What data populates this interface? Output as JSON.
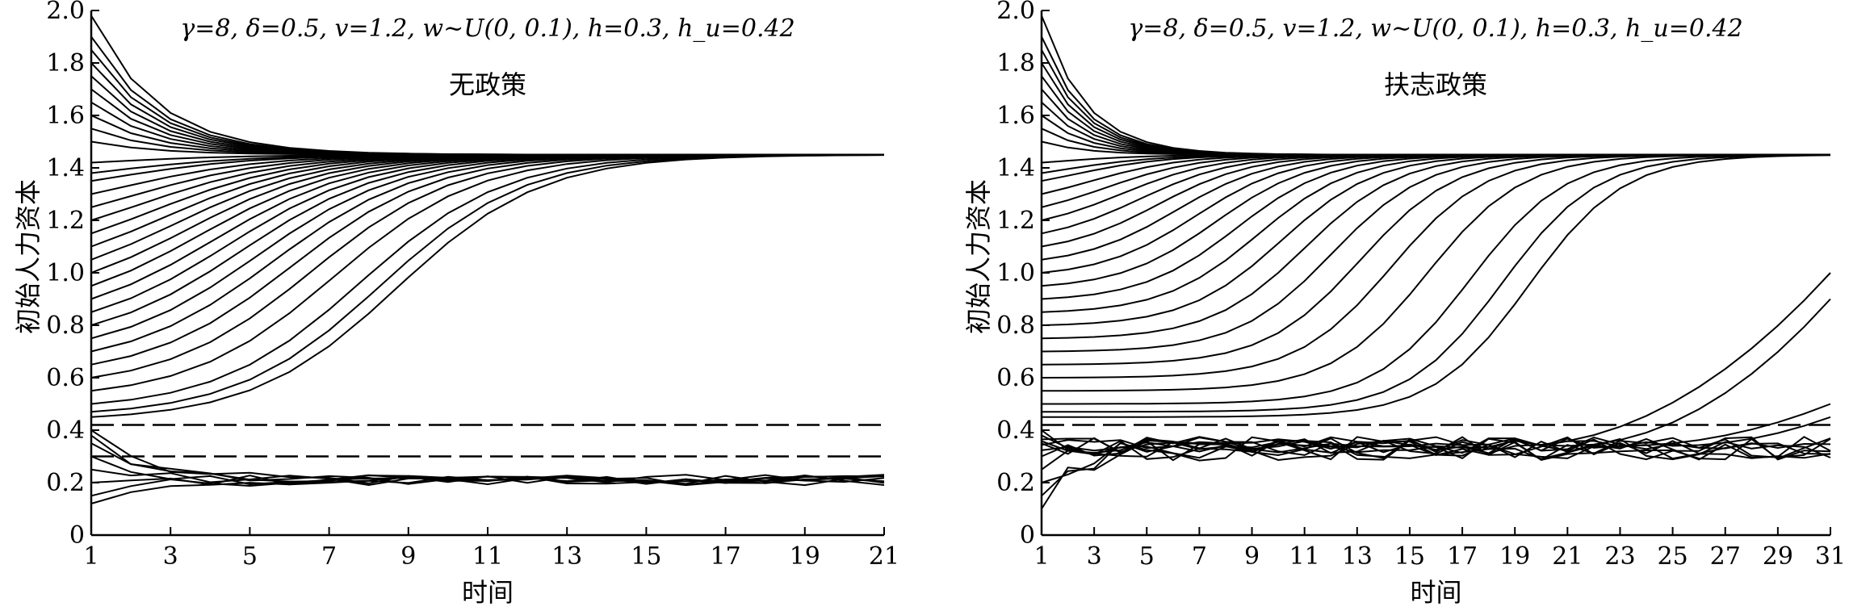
{
  "chart_data": [
    {
      "type": "line",
      "annotation": "γ=8, δ=0.5, v=1.2, w~U(0, 0.1), h=0.3, h_u=0.42",
      "subtitle": "无政策",
      "xlabel": "时间",
      "ylabel": "初始人力资本",
      "xlim": [
        1,
        21
      ],
      "ylim": [
        0,
        2.0
      ],
      "x_ticks": [
        "1",
        "3",
        "5",
        "7",
        "9",
        "11",
        "13",
        "15",
        "17",
        "19",
        "21"
      ],
      "y_ticks": [
        "0",
        "0.2",
        "0.4",
        "0.6",
        "0.8",
        "1.0",
        "1.2",
        "1.4",
        "1.6",
        "1.8",
        "2.0"
      ],
      "steady_state": 1.45,
      "low_steady_state": 0.21,
      "reference_lines": [
        {
          "name": "h_u",
          "value": 0.42,
          "style": "dashed"
        },
        {
          "name": "h",
          "value": 0.3,
          "style": "dashed"
        }
      ],
      "series_groups": [
        {
          "group": "above threshold, decreasing to 1.45",
          "initial_values": [
            1.98,
            1.9,
            1.85,
            1.8,
            1.75,
            1.7,
            1.65,
            1.6,
            1.55,
            1.5
          ]
        },
        {
          "group": "above threshold, increasing to 1.45",
          "initial_values": [
            1.42,
            1.38,
            1.35,
            1.3,
            1.25,
            1.2,
            1.15,
            1.1,
            1.05,
            1.0,
            0.95,
            0.9,
            0.85,
            0.8,
            0.75,
            0.7,
            0.65,
            0.6,
            0.55,
            0.5,
            0.47,
            0.45
          ]
        },
        {
          "group": "below threshold, converging to about 0.21",
          "initial_values": [
            0.4,
            0.38,
            0.35,
            0.3,
            0.25,
            0.2,
            0.15,
            0.12
          ]
        }
      ]
    },
    {
      "type": "line",
      "annotation": "γ=8, δ=0.5, v=1.2, w~U(0, 0.1), h=0.3, h_u=0.42",
      "subtitle": "扶志政策",
      "xlabel": "时间",
      "ylabel": "初始人力资本",
      "xlim": [
        1,
        31
      ],
      "ylim": [
        0,
        2.0
      ],
      "x_ticks": [
        "1",
        "3",
        "5",
        "7",
        "9",
        "11",
        "13",
        "15",
        "17",
        "19",
        "21",
        "23",
        "25",
        "27",
        "29",
        "31"
      ],
      "y_ticks": [
        "0",
        "0.2",
        "0.4",
        "0.6",
        "0.8",
        "1.0",
        "1.2",
        "1.4",
        "1.6",
        "1.8",
        "2.0"
      ],
      "steady_state": 1.45,
      "low_steady_state": 0.33,
      "reference_lines": [
        {
          "name": "h_u",
          "value": 0.42,
          "style": "dashed"
        }
      ],
      "series_groups": [
        {
          "group": "above threshold, decreasing to 1.45",
          "initial_values": [
            1.98,
            1.9,
            1.85,
            1.8,
            1.75,
            1.7,
            1.65,
            1.6,
            1.55,
            1.5
          ]
        },
        {
          "group": "above threshold, increasing to 1.45",
          "initial_values": [
            1.42,
            1.38,
            1.35,
            1.3,
            1.25,
            1.2,
            1.15,
            1.1,
            1.05,
            1.0,
            0.95,
            0.9,
            0.85,
            0.8,
            0.75,
            0.7,
            0.65,
            0.6,
            0.55,
            0.5,
            0.47,
            0.45
          ]
        },
        {
          "group": "below threshold, oscillating near 0.33",
          "initial_values": [
            0.4,
            0.38,
            0.35,
            0.3,
            0.25,
            0.2,
            0.15,
            0.1
          ]
        },
        {
          "group": "late risers (t=31 value)",
          "final_values": [
            1.0,
            0.9,
            0.5,
            0.45
          ]
        }
      ]
    }
  ]
}
